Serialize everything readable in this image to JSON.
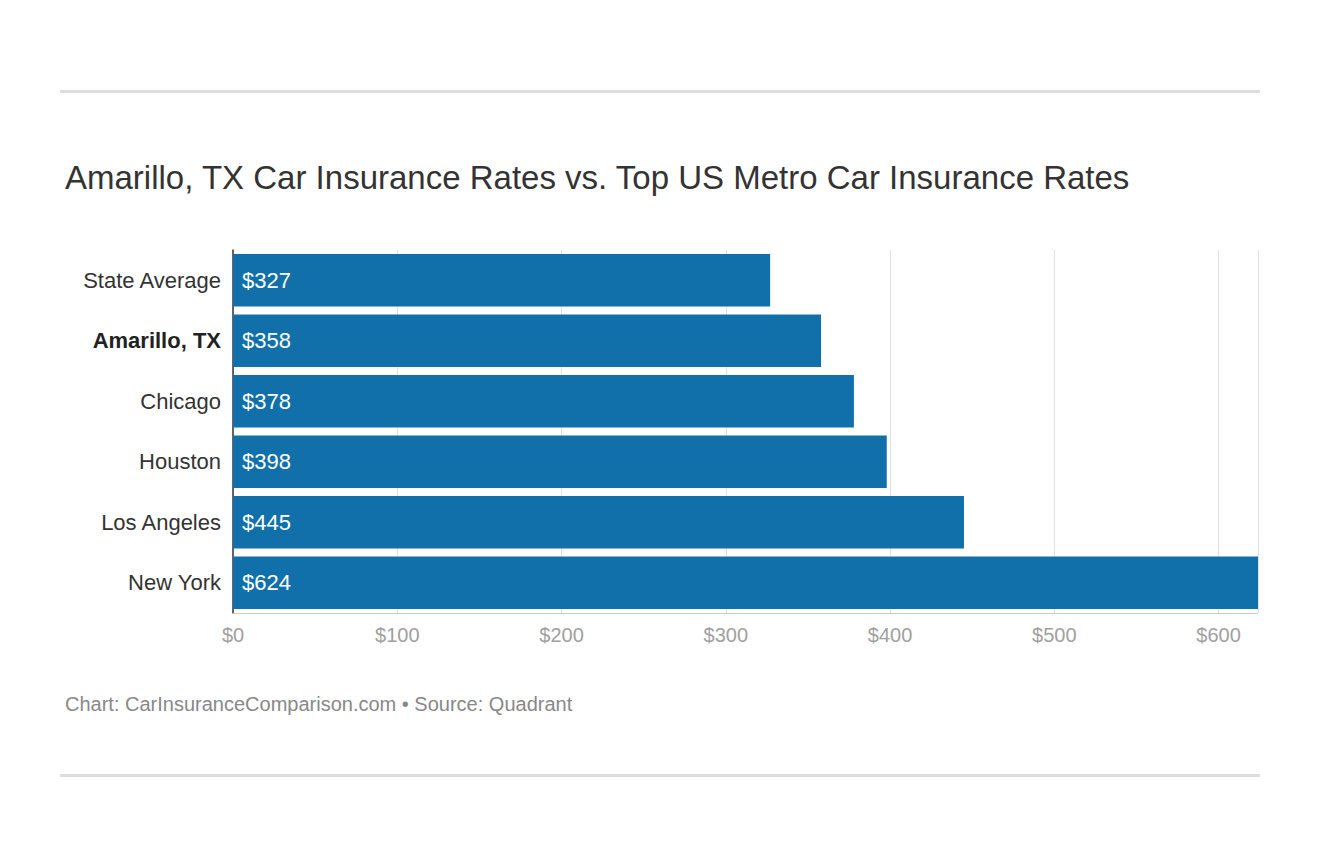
{
  "chart_data": {
    "type": "bar",
    "orientation": "horizontal",
    "title": "Amarillo, TX Car Insurance Rates vs. Top US Metro Car Insurance Rates",
    "caption": "Chart: CarInsuranceComparison.com • Source: Quadrant",
    "categories": [
      "State Average",
      "Amarillo, TX",
      "Chicago",
      "Houston",
      "Los Angeles",
      "New York"
    ],
    "values": [
      327,
      358,
      378,
      398,
      445,
      624
    ],
    "value_labels": [
      "$327",
      "$358",
      "$378",
      "$398",
      "$445",
      "$624"
    ],
    "data_labels": true,
    "color": "#1170aa",
    "xlim": [
      0,
      624
    ],
    "xticks": [
      {
        "value": 0,
        "label": "$0"
      },
      {
        "value": 100,
        "label": "$100"
      },
      {
        "value": 200,
        "label": "$200"
      },
      {
        "value": 300,
        "label": "$300"
      },
      {
        "value": 400,
        "label": "$400"
      },
      {
        "value": 500,
        "label": "$500"
      },
      {
        "value": 600,
        "label": "$600"
      }
    ],
    "grid": true
  }
}
